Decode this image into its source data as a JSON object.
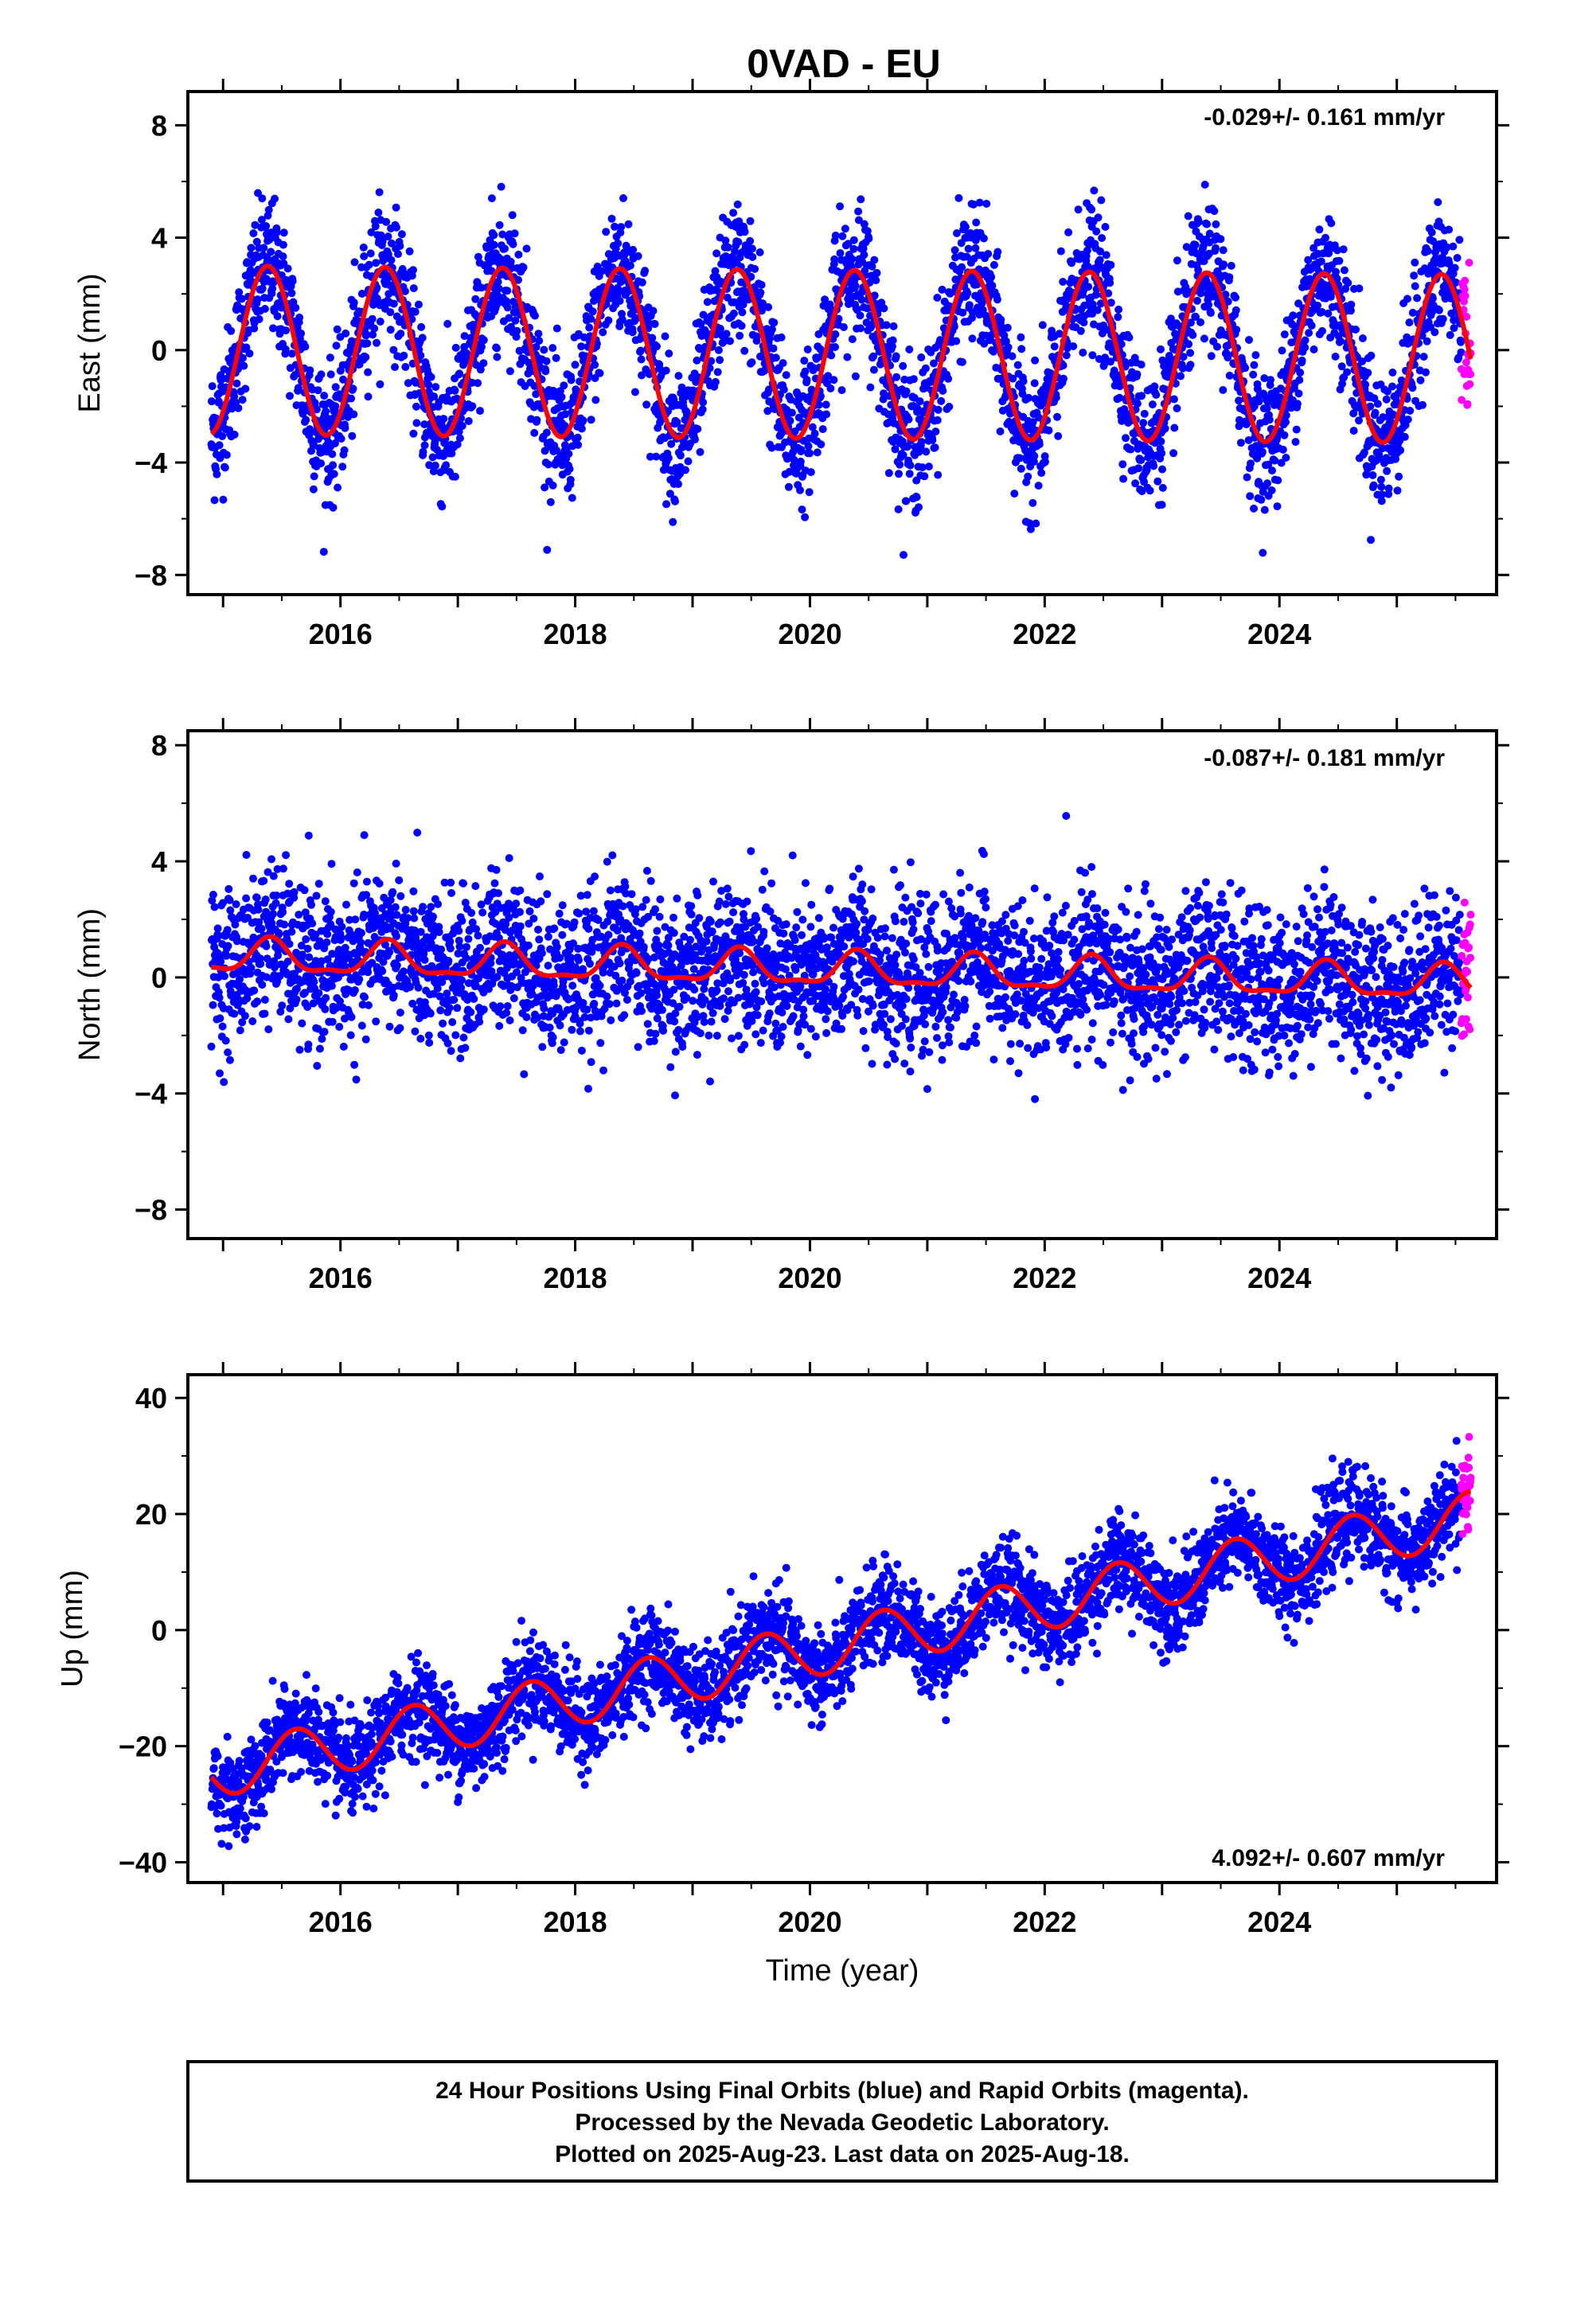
{
  "title": "0VAD - EU",
  "x_label": "Time (year)",
  "colors": {
    "final": "#0000ff",
    "rapid": "#ff00ff",
    "model": "#ff0000",
    "frame": "#000000"
  },
  "notes": [
    "24 Hour Positions Using Final Orbits (blue) and Rapid Orbits (magenta).",
    "Processed by the Nevada Geodetic Laboratory.",
    "Plotted on 2025-Aug-23. Last data on 2025-Aug-18."
  ],
  "panels": [
    {
      "ylabel": "East (mm)",
      "rate": "-0.029+/- 0.161 mm/yr"
    },
    {
      "ylabel": "North (mm)",
      "rate": "-0.087+/- 0.181 mm/yr"
    },
    {
      "ylabel": "Up (mm)",
      "rate": "4.092+/- 0.607 mm/yr"
    }
  ],
  "chart_data": [
    {
      "type": "scatter",
      "title": "0VAD - EU",
      "ylabel": "East (mm)",
      "xlim": [
        2014.7,
        2025.85
      ],
      "ylim": [
        -8.7,
        9.2
      ],
      "xticks": [
        2016,
        2018,
        2020,
        2022,
        2024
      ],
      "yticks": [
        -8,
        -4,
        0,
        4,
        8
      ],
      "x_range_data": [
        2014.9,
        2025.63
      ],
      "rapid_x_range": [
        2025.55,
        2025.63
      ],
      "model": {
        "offset": 0.0,
        "trend_mm_per_yr": -0.029,
        "annual_amplitude_mm": 3.0,
        "annual_peak_phase_yr": 0.38,
        "semiannual_amplitude_mm": 0.0
      },
      "scatter_sd_mm": 1.2,
      "series": [
        {
          "name": "Final Orbits (blue)",
          "color": "#0000ff"
        },
        {
          "name": "Rapid Orbits (magenta)",
          "color": "#ff00ff"
        }
      ],
      "annotation": "-0.029+/- 0.161 mm/yr"
    },
    {
      "type": "scatter",
      "ylabel": "North (mm)",
      "xlim": [
        2014.7,
        2025.85
      ],
      "ylim": [
        -9.0,
        8.5
      ],
      "xticks": [
        2016,
        2018,
        2020,
        2022,
        2024
      ],
      "yticks": [
        -8,
        -4,
        0,
        4,
        8
      ],
      "x_range_data": [
        2014.9,
        2025.63
      ],
      "rapid_x_range": [
        2025.55,
        2025.63
      ],
      "model": {
        "offset": 0.7,
        "trend_mm_per_yr": -0.087,
        "annual_amplitude_mm": 0.55,
        "annual_peak_phase_yr": 0.4,
        "semiannual_amplitude_mm": 0.2
      },
      "scatter_sd_mm": 1.3,
      "series": [
        {
          "name": "Final Orbits (blue)",
          "color": "#0000ff"
        },
        {
          "name": "Rapid Orbits (magenta)",
          "color": "#ff00ff"
        }
      ],
      "annotation": "-0.087+/- 0.181 mm/yr"
    },
    {
      "type": "scatter",
      "ylabel": "Up (mm)",
      "xlim": [
        2014.7,
        2025.85
      ],
      "ylim": [
        -43.5,
        44.0
      ],
      "xticks": [
        2016,
        2018,
        2020,
        2022,
        2024
      ],
      "yticks": [
        -40,
        -20,
        0,
        20,
        40
      ],
      "x_range_data": [
        2014.9,
        2025.63
      ],
      "rapid_x_range": [
        2025.55,
        2025.63
      ],
      "model": {
        "offset": -24.5,
        "trend_mm_per_yr": 4.092,
        "annual_amplitude_mm": 4.5,
        "annual_peak_phase_yr": 0.62,
        "semiannual_amplitude_mm": 0.0
      },
      "scatter_sd_mm": 4.0,
      "series": [
        {
          "name": "Final Orbits (blue)",
          "color": "#0000ff"
        },
        {
          "name": "Rapid Orbits (magenta)",
          "color": "#ff00ff"
        }
      ],
      "annotation": "4.092+/- 0.607 mm/yr"
    }
  ]
}
